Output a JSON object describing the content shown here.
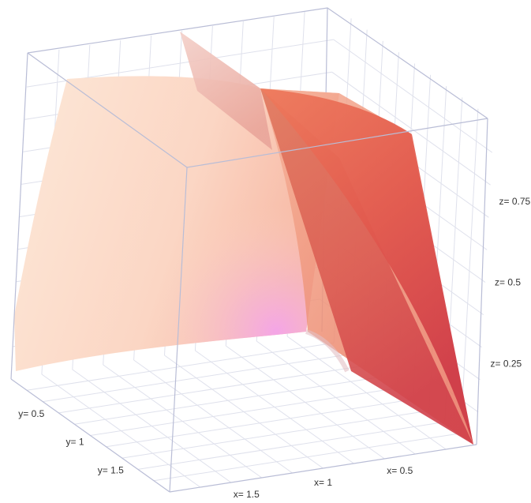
{
  "chart_data": {
    "type": "surface",
    "axes": {
      "x": {
        "ticks": [
          1.5,
          1,
          0.5
        ],
        "tick_labels": [
          "x= 1.5",
          "x= 1",
          "x= 0.5"
        ],
        "range": [
          0,
          2
        ]
      },
      "y": {
        "ticks": [
          0.5,
          1,
          1.5
        ],
        "tick_labels": [
          "y= 0.5",
          "y= 1",
          "y= 1.5"
        ],
        "range": [
          0,
          2
        ]
      },
      "z": {
        "ticks": [
          0.25,
          0.5,
          0.75
        ],
        "tick_labels": [
          "z= 0.25",
          "z= 0.5",
          "z= 0.75"
        ],
        "range": [
          0,
          1
        ]
      }
    },
    "grid": true,
    "colorscale": [
      "#fbe6d6",
      "#f5b79b",
      "#ec7656",
      "#d8424a"
    ],
    "highlight_color": "#f3a9e8"
  }
}
